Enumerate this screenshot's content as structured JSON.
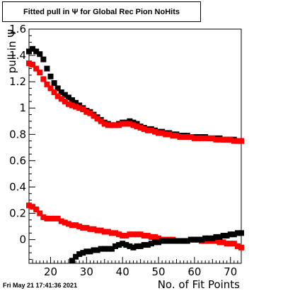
{
  "title": "Fitted pull in  Ψ  for Global Rec Pion NoHits",
  "timestamp": "Fri May 21 17:41:36 2021",
  "chart_data": {
    "type": "scatter",
    "title": "Fitted pull in  Ψ  for Global Rec Pion NoHits",
    "xlabel": "No. of Fit Points",
    "ylabel": "pull in  Ψ",
    "xlim": [
      14,
      73
    ],
    "ylim": [
      -0.18,
      1.6
    ],
    "x_ticks": [
      "20",
      "30",
      "40",
      "50",
      "60",
      "70"
    ],
    "y_ticks": [
      "0",
      "0.2",
      "0.4",
      "0.6",
      "0.8",
      "1",
      "1.2",
      "1.4",
      "1.6"
    ],
    "grid": false,
    "series": [
      {
        "color": "#000000",
        "points": [
          [
            14,
            1.43
          ],
          [
            15,
            1.45
          ],
          [
            16,
            1.43
          ],
          [
            17,
            1.41
          ],
          [
            18,
            1.37
          ],
          [
            19,
            1.3
          ],
          [
            20,
            1.24
          ],
          [
            21,
            1.19
          ],
          [
            22,
            1.15
          ],
          [
            23,
            1.12
          ],
          [
            24,
            1.1
          ],
          [
            25,
            1.08
          ],
          [
            26,
            1.06
          ],
          [
            27,
            1.04
          ],
          [
            28,
            1.02
          ],
          [
            29,
            1.0
          ],
          [
            30,
            0.98
          ],
          [
            31,
            0.97
          ],
          [
            32,
            0.95
          ],
          [
            33,
            0.93
          ],
          [
            34,
            0.91
          ],
          [
            35,
            0.89
          ],
          [
            36,
            0.88
          ],
          [
            37,
            0.87
          ],
          [
            38,
            0.87
          ],
          [
            39,
            0.88
          ],
          [
            40,
            0.89
          ],
          [
            41,
            0.89
          ],
          [
            42,
            0.9
          ],
          [
            43,
            0.89
          ],
          [
            44,
            0.88
          ],
          [
            45,
            0.86
          ],
          [
            46,
            0.85
          ],
          [
            47,
            0.84
          ],
          [
            48,
            0.84
          ],
          [
            49,
            0.83
          ],
          [
            50,
            0.82
          ],
          [
            51,
            0.82
          ],
          [
            52,
            0.81
          ],
          [
            53,
            0.81
          ],
          [
            54,
            0.8
          ],
          [
            55,
            0.8
          ],
          [
            56,
            0.79
          ],
          [
            57,
            0.79
          ],
          [
            58,
            0.79
          ],
          [
            59,
            0.78
          ],
          [
            60,
            0.78
          ],
          [
            61,
            0.78
          ],
          [
            62,
            0.78
          ],
          [
            63,
            0.78
          ],
          [
            64,
            0.77
          ],
          [
            65,
            0.77
          ],
          [
            66,
            0.77
          ],
          [
            67,
            0.77
          ],
          [
            68,
            0.76
          ],
          [
            69,
            0.76
          ],
          [
            70,
            0.76
          ],
          [
            71,
            0.76
          ],
          [
            72,
            0.75
          ],
          [
            73,
            0.75
          ]
        ]
      },
      {
        "color": "#ff0000",
        "points": [
          [
            14,
            1.34
          ],
          [
            15,
            1.33
          ],
          [
            16,
            1.3
          ],
          [
            17,
            1.27
          ],
          [
            18,
            1.22
          ],
          [
            19,
            1.18
          ],
          [
            20,
            1.15
          ],
          [
            21,
            1.12
          ],
          [
            22,
            1.09
          ],
          [
            23,
            1.07
          ],
          [
            24,
            1.05
          ],
          [
            25,
            1.03
          ],
          [
            26,
            1.02
          ],
          [
            27,
            1.01
          ],
          [
            28,
            1.0
          ],
          [
            29,
            0.99
          ],
          [
            30,
            0.97
          ],
          [
            31,
            0.96
          ],
          [
            32,
            0.94
          ],
          [
            33,
            0.92
          ],
          [
            34,
            0.9
          ],
          [
            35,
            0.88
          ],
          [
            36,
            0.87
          ],
          [
            37,
            0.87
          ],
          [
            38,
            0.87
          ],
          [
            39,
            0.87
          ],
          [
            40,
            0.88
          ],
          [
            41,
            0.88
          ],
          [
            42,
            0.88
          ],
          [
            43,
            0.87
          ],
          [
            44,
            0.86
          ],
          [
            45,
            0.85
          ],
          [
            46,
            0.84
          ],
          [
            47,
            0.83
          ],
          [
            48,
            0.83
          ],
          [
            49,
            0.82
          ],
          [
            50,
            0.81
          ],
          [
            51,
            0.81
          ],
          [
            52,
            0.8
          ],
          [
            53,
            0.8
          ],
          [
            54,
            0.79
          ],
          [
            55,
            0.79
          ],
          [
            56,
            0.78
          ],
          [
            57,
            0.78
          ],
          [
            58,
            0.78
          ],
          [
            59,
            0.78
          ],
          [
            60,
            0.77
          ],
          [
            61,
            0.77
          ],
          [
            62,
            0.77
          ],
          [
            63,
            0.77
          ],
          [
            64,
            0.77
          ],
          [
            65,
            0.77
          ],
          [
            66,
            0.76
          ],
          [
            67,
            0.76
          ],
          [
            68,
            0.76
          ],
          [
            69,
            0.76
          ],
          [
            70,
            0.76
          ],
          [
            71,
            0.75
          ],
          [
            72,
            0.75
          ],
          [
            73,
            0.75
          ]
        ]
      },
      {
        "color": "#ff0000",
        "points": [
          [
            14,
            0.26
          ],
          [
            15,
            0.25
          ],
          [
            16,
            0.23
          ],
          [
            17,
            0.2
          ],
          [
            18,
            0.17
          ],
          [
            19,
            0.16
          ],
          [
            20,
            0.16
          ],
          [
            21,
            0.16
          ],
          [
            22,
            0.16
          ],
          [
            23,
            0.14
          ],
          [
            24,
            0.13
          ],
          [
            25,
            0.12
          ],
          [
            26,
            0.11
          ],
          [
            27,
            0.11
          ],
          [
            28,
            0.1
          ],
          [
            29,
            0.09
          ],
          [
            30,
            0.09
          ],
          [
            31,
            0.08
          ],
          [
            32,
            0.08
          ],
          [
            33,
            0.07
          ],
          [
            34,
            0.07
          ],
          [
            35,
            0.06
          ],
          [
            36,
            0.06
          ],
          [
            37,
            0.05
          ],
          [
            38,
            0.05
          ],
          [
            39,
            0.04
          ],
          [
            40,
            0.03
          ],
          [
            41,
            0.03
          ],
          [
            42,
            0.04
          ],
          [
            43,
            0.04
          ],
          [
            44,
            0.04
          ],
          [
            45,
            0.04
          ],
          [
            46,
            0.03
          ],
          [
            47,
            0.03
          ],
          [
            48,
            0.02
          ],
          [
            49,
            0.02
          ],
          [
            50,
            0.01
          ],
          [
            51,
            0.0
          ],
          [
            52,
            0.0
          ],
          [
            53,
            0.0
          ],
          [
            54,
            0.0
          ],
          [
            55,
            -0.01
          ],
          [
            56,
            -0.01
          ],
          [
            57,
            -0.01
          ],
          [
            58,
            -0.01
          ],
          [
            59,
            0.0
          ],
          [
            60,
            0.0
          ],
          [
            61,
            0.0
          ],
          [
            62,
            -0.01
          ],
          [
            63,
            -0.01
          ],
          [
            64,
            -0.01
          ],
          [
            65,
            -0.01
          ],
          [
            66,
            -0.01
          ],
          [
            67,
            -0.02
          ],
          [
            68,
            -0.02
          ],
          [
            69,
            -0.03
          ],
          [
            70,
            -0.03
          ],
          [
            71,
            -0.03
          ],
          [
            72,
            -0.05
          ],
          [
            73,
            -0.06
          ]
        ]
      },
      {
        "color": "#000000",
        "points": [
          [
            26,
            -0.16
          ],
          [
            27,
            -0.13
          ],
          [
            28,
            -0.11
          ],
          [
            29,
            -0.1
          ],
          [
            30,
            -0.09
          ],
          [
            31,
            -0.09
          ],
          [
            32,
            -0.08
          ],
          [
            33,
            -0.08
          ],
          [
            34,
            -0.07
          ],
          [
            35,
            -0.07
          ],
          [
            36,
            -0.07
          ],
          [
            37,
            -0.07
          ],
          [
            38,
            -0.05
          ],
          [
            39,
            -0.04
          ],
          [
            40,
            -0.03
          ],
          [
            41,
            -0.04
          ],
          [
            42,
            -0.05
          ],
          [
            43,
            -0.06
          ],
          [
            44,
            -0.05
          ],
          [
            45,
            -0.05
          ],
          [
            46,
            -0.04
          ],
          [
            47,
            -0.04
          ],
          [
            48,
            -0.03
          ],
          [
            49,
            -0.02
          ],
          [
            50,
            -0.02
          ],
          [
            51,
            -0.01
          ],
          [
            52,
            -0.01
          ],
          [
            53,
            -0.01
          ],
          [
            54,
            -0.01
          ],
          [
            55,
            -0.01
          ],
          [
            56,
            -0.01
          ],
          [
            57,
            -0.01
          ],
          [
            58,
            -0.01
          ],
          [
            59,
            0.0
          ],
          [
            60,
            0.0
          ],
          [
            61,
            0.0
          ],
          [
            62,
            0.0
          ],
          [
            63,
            0.01
          ],
          [
            64,
            0.01
          ],
          [
            65,
            0.01
          ],
          [
            66,
            0.02
          ],
          [
            67,
            0.02
          ],
          [
            68,
            0.03
          ],
          [
            69,
            0.03
          ],
          [
            70,
            0.04
          ],
          [
            71,
            0.04
          ],
          [
            72,
            0.05
          ],
          [
            73,
            0.05
          ]
        ]
      }
    ]
  }
}
